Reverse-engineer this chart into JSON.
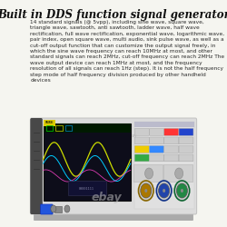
{
  "background_color": "#f5f5f0",
  "title": "Built in DDS function signal generator",
  "title_fontsize": 8.5,
  "title_fontweight": "bold",
  "title_fontstyle": "italic",
  "title_fontfamily": "serif",
  "body_text": "14 standard signals (@ 5vpp), including sine wave, square wave, triangle wave, sawtooth, anti sawtooth, ladder wave, half wave rectification, full wave rectification, exponential wave, logarithmic wave, pair index, open square wave, multi audio, sink pulse wave, as well as a cut-off output function that can customize the output signal freely, in which the sine wave frequency can reach 10MHz at most, and other standard signals can reach 2MHz, cut-off frequency can reach 2MHz The wave output device can reach 1MHz at most, and the frequency resolution of all signals can reach 1Hz (step). It is not the half frequency step mode of half frequency division produced by other handheld devices",
  "body_fontsize": 4.2,
  "body_color": "#2a2a2a",
  "wave1_color": "#ccdd00",
  "wave2_color": "#00ccff",
  "wave3_color": "#ff44cc",
  "ebay_text": "ebay",
  "ebay_color": "#bbbbbb",
  "ebay_fontsize": 9,
  "screen_bg": "#0d0d1a",
  "device_body": "#dcdcdc",
  "device_dark": "#3a3a3a",
  "btn_row1": [
    "#cccccc",
    "#cccccc",
    "#cccccc",
    "#ff3333",
    "#3333cc"
  ],
  "btn_row2": [
    "#cccccc",
    "#cccccc",
    "#cccccc",
    "#cccccc",
    "#cccccc"
  ],
  "btn_row3": [
    "#cccccc",
    "#eecc00",
    "#3399ff",
    "#cccccc",
    "#cccccc"
  ],
  "btn_row4": [
    "#cccccc",
    "#33aa33",
    "#cccccc",
    "#cccccc",
    "#cccccc"
  ],
  "knob_colors": [
    "#aa7700",
    "#2244aa",
    "#228844"
  ]
}
